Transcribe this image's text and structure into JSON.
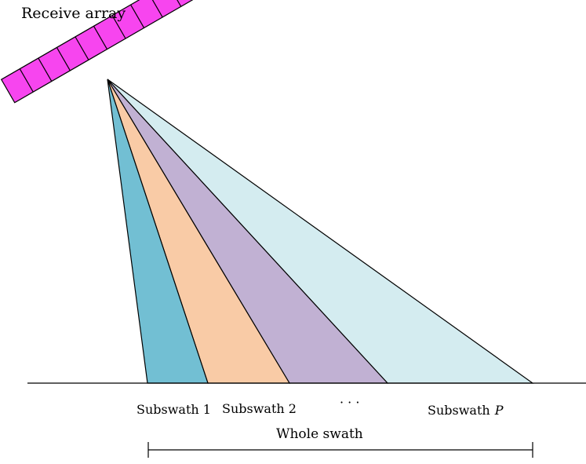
{
  "diagram": {
    "title": "Receive array",
    "subswaths": [
      {
        "label": "Subswath 1",
        "fill": "#72bfd3"
      },
      {
        "label": "Subswath 2",
        "fill": "#f9cba6"
      },
      {
        "label": "",
        "fill": "#c1b1d3"
      },
      {
        "label": "Subswath",
        "suffix": "P",
        "fill": "#d4ecf0"
      }
    ],
    "ellipsis": "· · ·",
    "whole_label": "Whole swath",
    "array_color": "#f745ef"
  }
}
